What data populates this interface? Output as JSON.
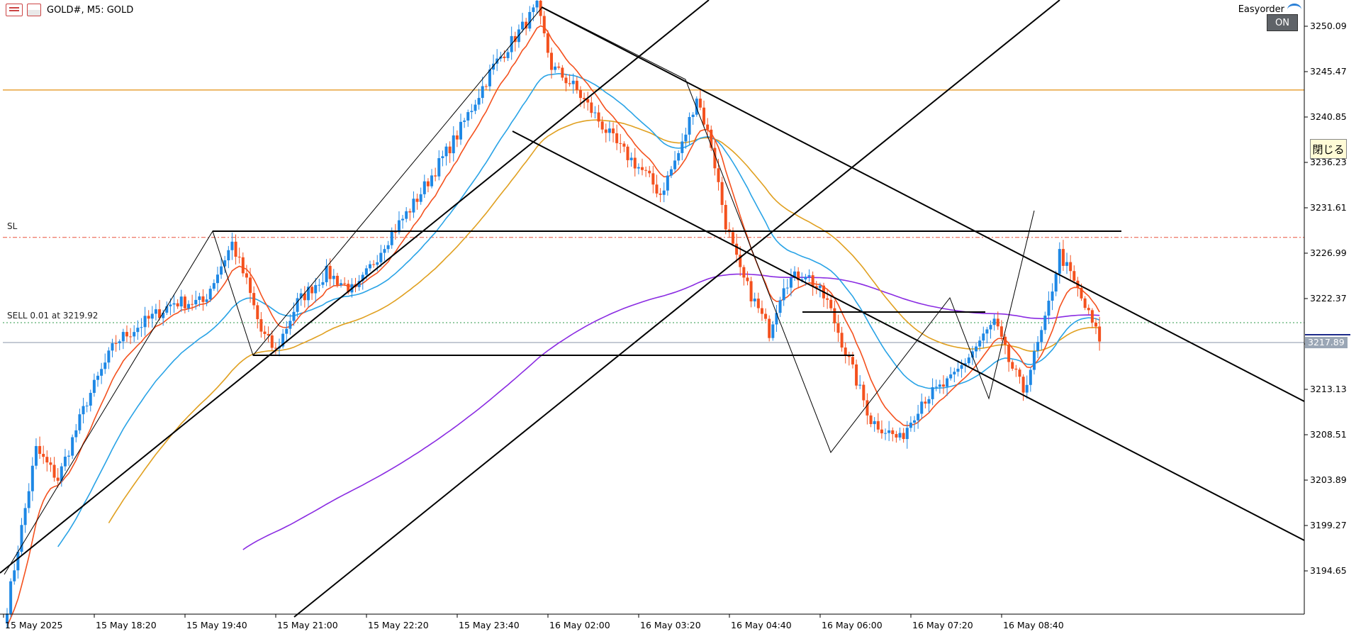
{
  "header": {
    "symbol_label": "GOLD#, M5:  GOLD",
    "easyorder_label": "Easyorder",
    "on_label": "ON",
    "close_label": "閉じる"
  },
  "annotations": {
    "sl_label": "SL",
    "sell_label": "SELL 0.01 at 3219.92"
  },
  "colors": {
    "bull": "#1e88e5",
    "bear": "#f4511e",
    "ma_fast": "#f4511e",
    "ma_mid": "#29a3e6",
    "ma_slow": "#e0a020",
    "ma_long": "#8a2be2",
    "resistance": "#e8a23a",
    "sl_line": "#e9543f",
    "entry_line": "#2e9a4a",
    "current_price_bg": "#9aa6b5"
  },
  "chart_data": {
    "type": "candlestick",
    "timeframe": "M5",
    "y_ticks": [
      3250.09,
      3245.47,
      3240.85,
      3236.23,
      3231.61,
      3226.99,
      3222.37,
      3217.75,
      3213.13,
      3208.51,
      3203.89,
      3199.27,
      3194.65
    ],
    "y_tick_labels": [
      "3250.09",
      "3245.47",
      "3240.85",
      "3236.23",
      "3231.61",
      "3226.99",
      "3222.37",
      "3217.75",
      "3213.13",
      "3208.51",
      "3203.89",
      "3199.27",
      "3194.65"
    ],
    "x_tick_labels": [
      "15 May 2025",
      "15 May 18:20",
      "15 May 19:40",
      "15 May 21:00",
      "15 May 22:20",
      "15 May 23:40",
      "16 May 02:00",
      "16 May 03:20",
      "16 May 04:40",
      "16 May 06:00",
      "16 May 07:20",
      "16 May 08:40"
    ],
    "current_price": 3217.89,
    "current_price_label": "3217.89",
    "sl_price": 3228.6,
    "sell_price": 3219.92,
    "resistance_price": 3243.6,
    "close_anchors": [
      [
        0,
        3191
      ],
      [
        8,
        3207
      ],
      [
        14,
        3204
      ],
      [
        22,
        3212
      ],
      [
        30,
        3218
      ],
      [
        38,
        3220
      ],
      [
        46,
        3222
      ],
      [
        54,
        3222
      ],
      [
        62,
        3228
      ],
      [
        66,
        3224
      ],
      [
        70,
        3219
      ],
      [
        74,
        3217
      ],
      [
        80,
        3222
      ],
      [
        88,
        3225
      ],
      [
        96,
        3223
      ],
      [
        104,
        3228
      ],
      [
        112,
        3232
      ],
      [
        124,
        3239
      ],
      [
        134,
        3246
      ],
      [
        142,
        3250
      ],
      [
        146,
        3252
      ],
      [
        150,
        3246
      ],
      [
        156,
        3244
      ],
      [
        162,
        3241
      ],
      [
        168,
        3238
      ],
      [
        176,
        3235
      ],
      [
        180,
        3233
      ],
      [
        186,
        3238
      ],
      [
        190,
        3243
      ],
      [
        194,
        3238
      ],
      [
        198,
        3230
      ],
      [
        202,
        3225
      ],
      [
        206,
        3222
      ],
      [
        210,
        3219
      ],
      [
        214,
        3224
      ],
      [
        220,
        3225
      ],
      [
        226,
        3222
      ],
      [
        232,
        3216
      ],
      [
        238,
        3210
      ],
      [
        246,
        3208
      ],
      [
        252,
        3212
      ],
      [
        260,
        3214
      ],
      [
        268,
        3218
      ],
      [
        272,
        3220
      ],
      [
        276,
        3216
      ],
      [
        280,
        3213
      ],
      [
        286,
        3220
      ],
      [
        290,
        3227
      ],
      [
        294,
        3224
      ],
      [
        300,
        3219
      ],
      [
        301,
        3218
      ]
    ]
  }
}
